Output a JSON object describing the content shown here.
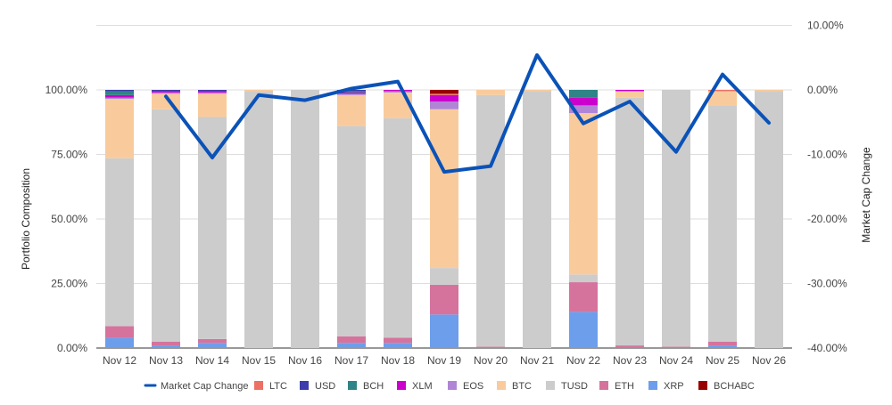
{
  "chart_data": {
    "type": "bar",
    "stacked": true,
    "categories": [
      "Nov 12",
      "Nov 13",
      "Nov 14",
      "Nov 15",
      "Nov 16",
      "Nov 17",
      "Nov 18",
      "Nov 19",
      "Nov 20",
      "Nov 21",
      "Nov 22",
      "Nov 23",
      "Nov 24",
      "Nov 25",
      "Nov 26"
    ],
    "ylabel": "Portfolio Composition",
    "y2label": "Market Cap Change",
    "ylim": [
      0,
      100
    ],
    "y2lim": [
      -40,
      10
    ],
    "yticks": [
      "0.00%",
      "25.00%",
      "50.00%",
      "75.00%",
      "100.00%"
    ],
    "y2ticks": [
      "-40.00%",
      "-30.00%",
      "-20.00%",
      "-10.00%",
      "0.00%",
      "10.00%"
    ],
    "legend_position": "bottom",
    "series": [
      {
        "name": "XRP",
        "color": "#6d9eeb",
        "values": [
          4,
          1,
          2,
          0,
          0,
          2,
          2,
          13,
          0,
          0,
          14,
          0,
          0,
          1,
          0
        ]
      },
      {
        "name": "ETH",
        "color": "#d5739d",
        "values": [
          4.5,
          1.5,
          1.5,
          0,
          0,
          2.5,
          2,
          11.5,
          0.5,
          0,
          11.5,
          1,
          0.5,
          1.5,
          0
        ]
      },
      {
        "name": "TUSD",
        "color": "#cccccc",
        "values": [
          65,
          90,
          86,
          99.5,
          100,
          81.5,
          85,
          6.5,
          97.5,
          99.5,
          3,
          96,
          99.5,
          91.5,
          99.5
        ]
      },
      {
        "name": "BTC",
        "color": "#f9cb9c",
        "values": [
          23,
          6,
          9,
          0.5,
          0,
          12,
          10,
          61.5,
          2,
          0.5,
          62.5,
          2.5,
          0,
          5.5,
          0.5
        ]
      },
      {
        "name": "EOS",
        "color": "#b085d6",
        "values": [
          0.5,
          0.5,
          0.5,
          0,
          0,
          0.5,
          0.5,
          3,
          0,
          0,
          3,
          0,
          0,
          0,
          0
        ]
      },
      {
        "name": "XLM",
        "color": "#cc00cc",
        "values": [
          1,
          0.5,
          0.5,
          0,
          0,
          0.5,
          0.5,
          2.5,
          0,
          0,
          3,
          0.5,
          0,
          0,
          0
        ]
      },
      {
        "name": "BCH",
        "color": "#2e8486",
        "values": [
          1.5,
          0,
          0,
          0,
          0,
          0.5,
          0,
          0,
          0,
          0,
          3,
          0,
          0,
          0,
          0
        ]
      },
      {
        "name": "USD",
        "color": "#3d3dab",
        "values": [
          0.5,
          0.5,
          0.5,
          0,
          0,
          0.5,
          0,
          0,
          0,
          0,
          0,
          0,
          0,
          0,
          0
        ]
      },
      {
        "name": "LTC",
        "color": "#ec7063",
        "values": [
          0,
          0,
          0,
          0,
          0,
          0,
          0,
          0.5,
          0,
          0,
          0,
          0,
          0,
          0.5,
          0
        ]
      },
      {
        "name": "BCHABC",
        "color": "#990000",
        "values": [
          0,
          0,
          0,
          0,
          0,
          0,
          0,
          1.5,
          0,
          0,
          0,
          0,
          0,
          0,
          0
        ]
      }
    ],
    "line": {
      "name": "Market Cap Change",
      "color": "#0b52b8",
      "values": [
        null,
        -1.0,
        -10.5,
        -0.8,
        -1.6,
        0.2,
        1.3,
        -12.7,
        -11.8,
        5.4,
        -5.2,
        -1.8,
        -9.6,
        2.4,
        -5.1
      ]
    },
    "legend_order": [
      "Market Cap Change",
      "LTC",
      "USD",
      "BCH",
      "XLM",
      "EOS",
      "BTC",
      "TUSD",
      "ETH",
      "XRP",
      "BCHABC"
    ]
  }
}
